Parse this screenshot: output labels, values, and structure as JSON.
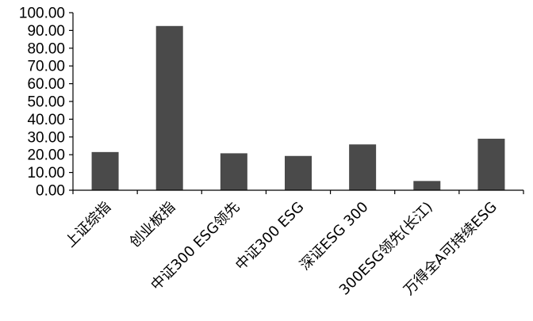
{
  "chart_data": {
    "type": "bar",
    "title": "",
    "xlabel": "",
    "ylabel": "",
    "categories": [
      "上证综指",
      "创业板指",
      "中证300 ESG领先",
      "中证300 ESG",
      "深证ESG 300",
      "300ESG领先(长江)",
      "万得全A可持续ESG"
    ],
    "values": [
      21.5,
      92.5,
      20.8,
      19.3,
      25.8,
      5.2,
      29.0
    ],
    "ylim": [
      0,
      100
    ],
    "yticks": [
      0,
      10,
      20,
      30,
      40,
      50,
      60,
      70,
      80,
      90,
      100
    ],
    "ytick_labels": [
      "0.00",
      "10.00",
      "20.00",
      "30.00",
      "40.00",
      "50.00",
      "60.00",
      "70.00",
      "80.00",
      "90.00",
      "100.00"
    ],
    "grid": false,
    "legend": "none",
    "bar_color": "#4a4a4a",
    "axis_color": "#000000"
  }
}
